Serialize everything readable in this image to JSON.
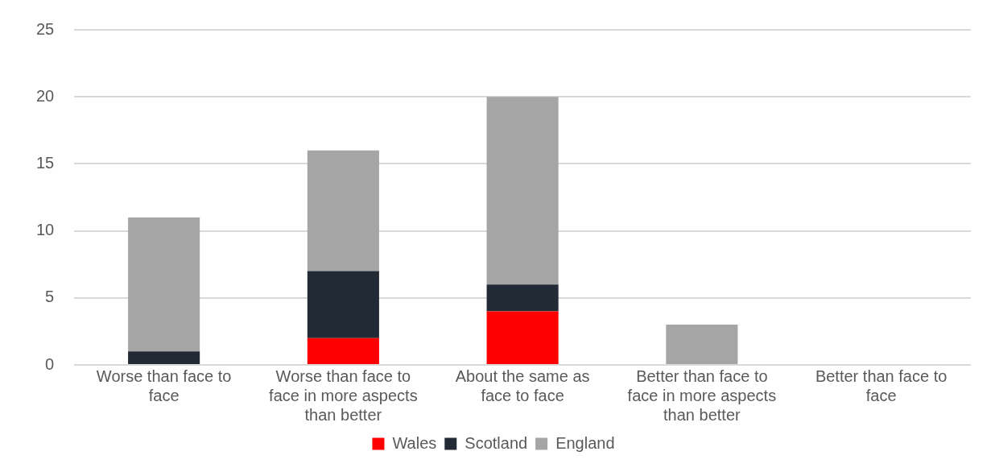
{
  "chart_data": {
    "type": "bar",
    "stacked": true,
    "categories": [
      "Worse than face to face",
      "Worse than face to face in more aspects than better",
      "About the same as face to face",
      "Better than face to face in more aspects than better",
      "Better than face to face"
    ],
    "series": [
      {
        "name": "Wales",
        "color": "#ff0000",
        "values": [
          0,
          2,
          4,
          0,
          0
        ]
      },
      {
        "name": "Scotland",
        "color": "#222a35",
        "values": [
          1,
          5,
          2,
          0,
          0
        ]
      },
      {
        "name": "England",
        "color": "#a5a5a5",
        "values": [
          10,
          9,
          14,
          3,
          0
        ]
      }
    ],
    "ylim": [
      0,
      25
    ],
    "yticks": [
      0,
      5,
      10,
      15,
      20,
      25
    ],
    "grid": "y",
    "legend": "bottom"
  }
}
